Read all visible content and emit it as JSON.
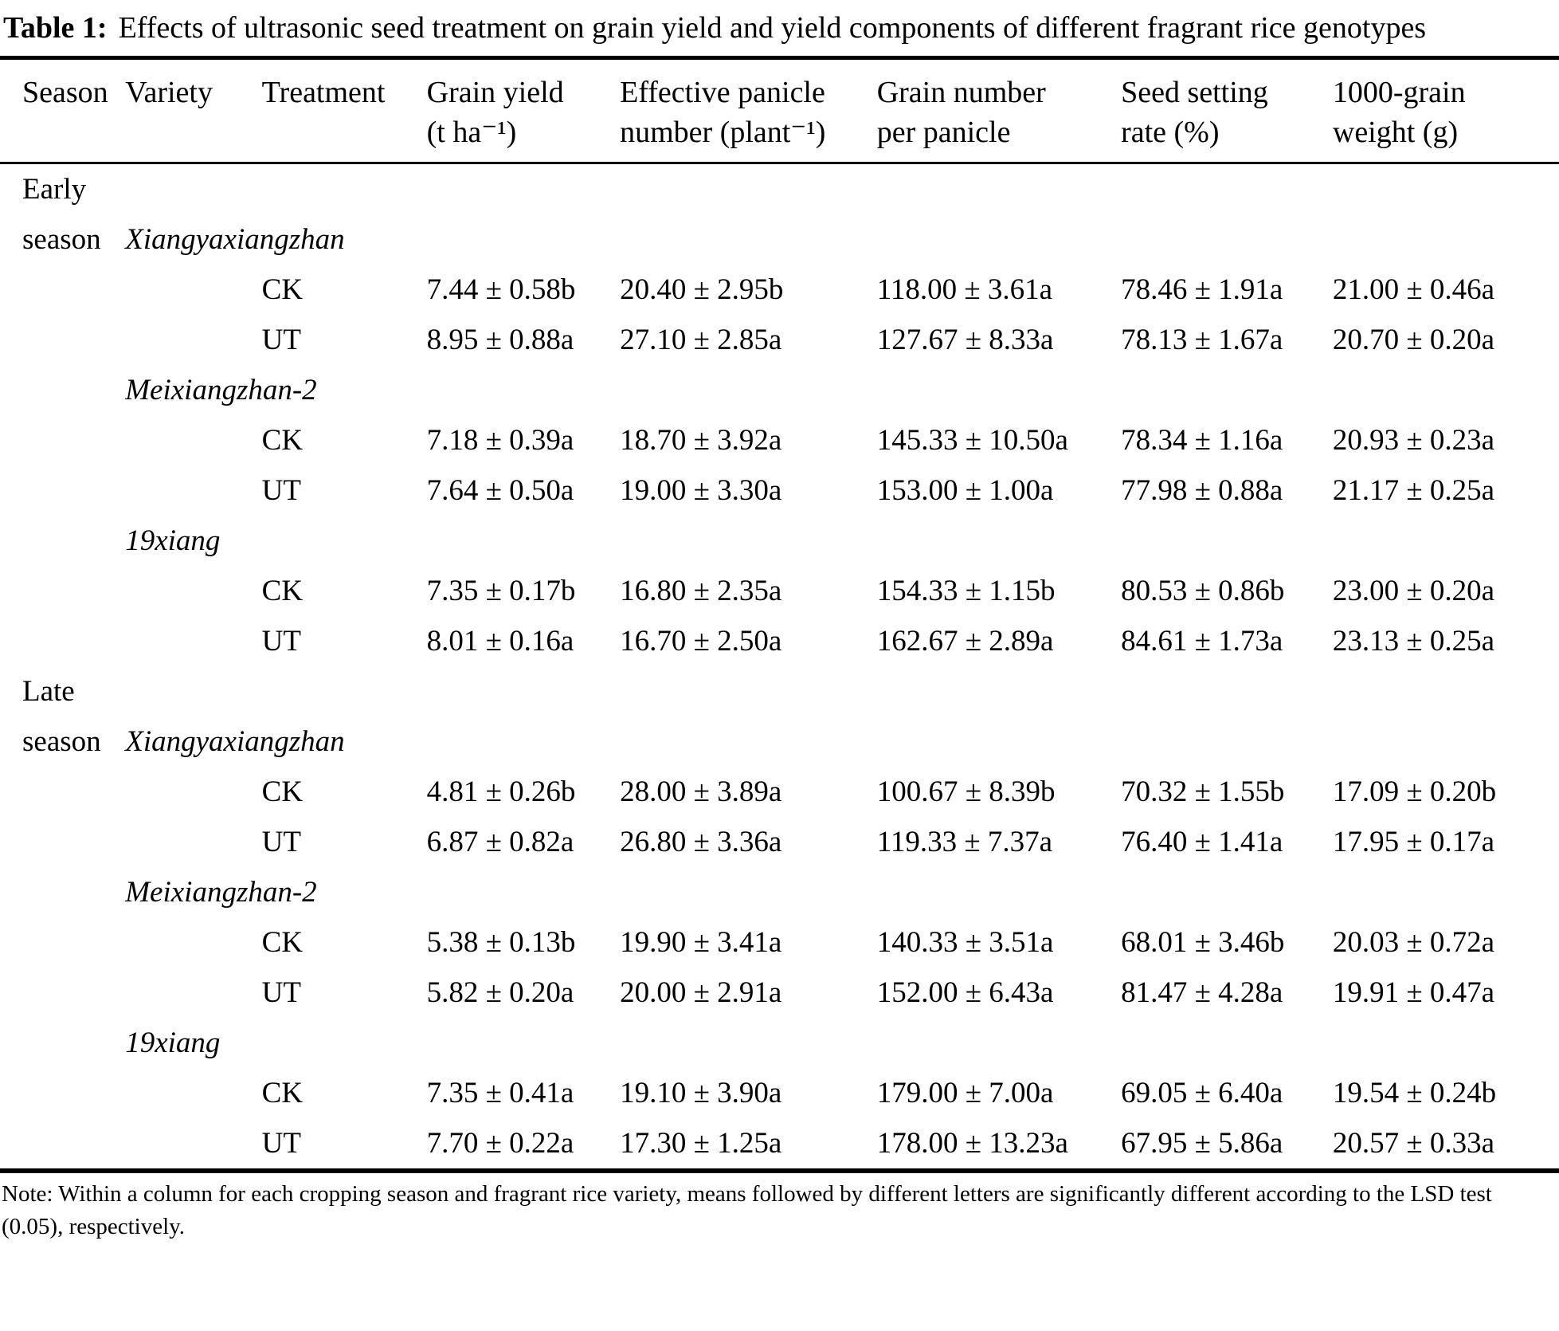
{
  "title": {
    "label": "Table 1:",
    "text": "Effects of ultrasonic seed treatment on grain yield and yield components of different fragrant rice genotypes"
  },
  "table": {
    "headers": [
      {
        "line1": "Season",
        "line2": ""
      },
      {
        "line1": "Variety",
        "line2": ""
      },
      {
        "line1": "Treatment",
        "line2": ""
      },
      {
        "line1": "Grain yield",
        "line2": "(t ha⁻¹)"
      },
      {
        "line1": "Effective panicle",
        "line2": "number (plant⁻¹)"
      },
      {
        "line1": "Grain number",
        "line2": "per panicle"
      },
      {
        "line1": "Seed setting",
        "line2": "rate (%)"
      },
      {
        "line1": "1000-grain",
        "line2": "weight (g)"
      }
    ],
    "rows": [
      {
        "season": "Early"
      },
      {
        "season": "season",
        "variety": "Xiangyaxiangzhan"
      },
      {
        "treatment": "CK",
        "values": [
          "7.44 ± 0.58b",
          "20.40 ± 2.95b",
          "118.00 ± 3.61a",
          "78.46 ± 1.91a",
          "21.00 ± 0.46a"
        ]
      },
      {
        "treatment": "UT",
        "values": [
          "8.95 ± 0.88a",
          "27.10 ± 2.85a",
          "127.67 ± 8.33a",
          "78.13 ± 1.67a",
          "20.70 ± 0.20a"
        ]
      },
      {
        "variety": "Meixiangzhan-2"
      },
      {
        "treatment": "CK",
        "values": [
          "7.18 ± 0.39a",
          "18.70 ± 3.92a",
          "145.33 ± 10.50a",
          "78.34 ± 1.16a",
          "20.93 ± 0.23a"
        ]
      },
      {
        "treatment": "UT",
        "values": [
          "7.64 ± 0.50a",
          "19.00 ± 3.30a",
          "153.00 ± 1.00a",
          "77.98 ± 0.88a",
          "21.17 ± 0.25a"
        ]
      },
      {
        "variety": "19xiang"
      },
      {
        "treatment": "CK",
        "values": [
          "7.35 ± 0.17b",
          "16.80 ± 2.35a",
          "154.33 ± 1.15b",
          "80.53 ± 0.86b",
          "23.00 ± 0.20a"
        ]
      },
      {
        "treatment": "UT",
        "values": [
          "8.01 ± 0.16a",
          "16.70 ± 2.50a",
          "162.67 ± 2.89a",
          "84.61 ± 1.73a",
          "23.13 ± 0.25a"
        ]
      },
      {
        "season": "Late"
      },
      {
        "season": "season",
        "variety": "Xiangyaxiangzhan"
      },
      {
        "treatment": "CK",
        "values": [
          "4.81 ± 0.26b",
          "28.00 ± 3.89a",
          "100.67 ± 8.39b",
          "70.32 ± 1.55b",
          "17.09 ± 0.20b"
        ]
      },
      {
        "treatment": "UT",
        "values": [
          "6.87 ± 0.82a",
          "26.80 ± 3.36a",
          "119.33 ± 7.37a",
          "76.40 ± 1.41a",
          "17.95 ± 0.17a"
        ]
      },
      {
        "variety": "Meixiangzhan-2"
      },
      {
        "treatment": "CK",
        "values": [
          "5.38 ± 0.13b",
          "19.90 ± 3.41a",
          "140.33 ± 3.51a",
          "68.01 ± 3.46b",
          "20.03 ± 0.72a"
        ]
      },
      {
        "treatment": "UT",
        "values": [
          "5.82 ± 0.20a",
          "20.00 ± 2.91a",
          "152.00 ± 6.43a",
          "81.47 ± 4.28a",
          "19.91 ± 0.47a"
        ]
      },
      {
        "variety": "19xiang"
      },
      {
        "treatment": "CK",
        "values": [
          "7.35 ± 0.41a",
          "19.10 ± 3.90a",
          "179.00 ± 7.00a",
          "69.05 ± 6.40a",
          "19.54 ± 0.24b"
        ]
      },
      {
        "treatment": "UT",
        "values": [
          "7.70 ± 0.22a",
          "17.30 ± 1.25a",
          "178.00 ± 13.23a",
          "67.95 ± 5.86a",
          "20.57 ± 0.33a"
        ]
      }
    ]
  },
  "note": "Note: Within a column for each cropping season and fragrant rice variety, means followed by different letters are significantly different according to the LSD test (0.05), respectively."
}
